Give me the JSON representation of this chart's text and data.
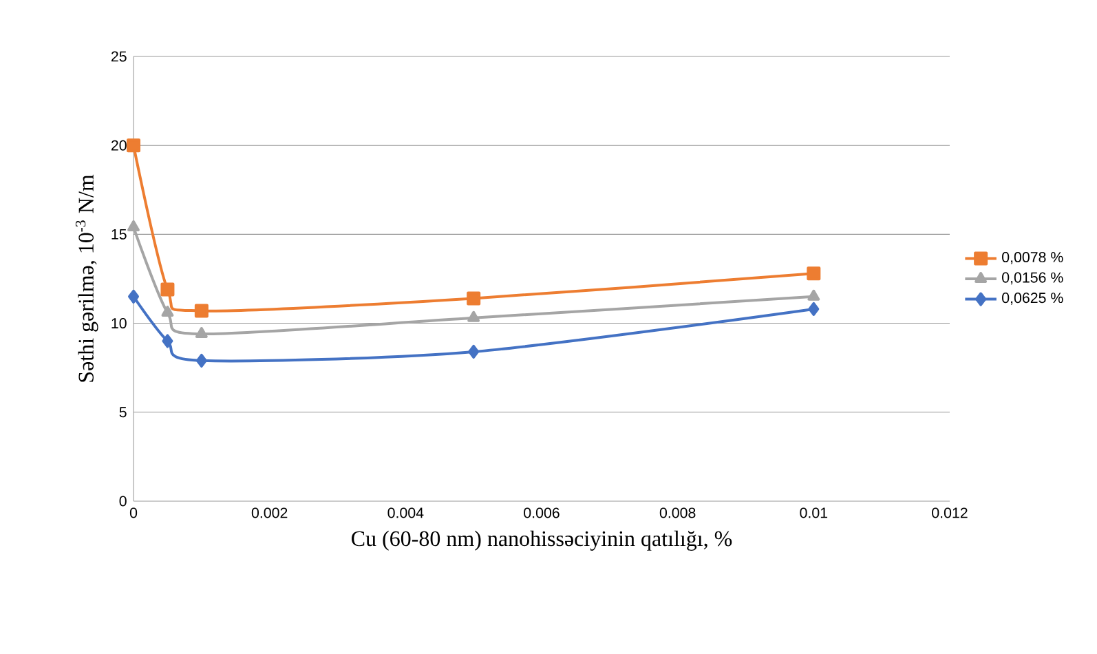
{
  "chart_data": {
    "type": "line",
    "xlabel": "Cu (60-80 nm) nanohissəciyinin qatılığı, %",
    "ylabel": "Səthi gərilmə, 10$^{-3}$ N/m",
    "x": [
      0,
      0.0005,
      0.001,
      0.005,
      0.01
    ],
    "series": [
      {
        "name": "0,0078 %",
        "color": "#ed7d31",
        "marker": "square",
        "values": [
          20,
          11.9,
          10.7,
          11.4,
          12.8
        ]
      },
      {
        "name": "0,0156 %",
        "color": "#a5a5a5",
        "marker": "triangle",
        "values": [
          15.4,
          10.6,
          9.4,
          10.3,
          11.5
        ]
      },
      {
        "name": "0,0625 %",
        "color": "#4472c4",
        "marker": "diamond",
        "values": [
          11.5,
          9.0,
          7.9,
          8.4,
          10.8
        ]
      }
    ],
    "xlim": [
      0,
      0.012
    ],
    "xticks": [
      0,
      0.002,
      0.004,
      0.006,
      0.008,
      0.01,
      0.012
    ],
    "ylim": [
      0,
      25
    ],
    "yticks": [
      0,
      5,
      10,
      15,
      20,
      25
    ],
    "grid": "y",
    "legend": "right",
    "line_style": "solid"
  }
}
